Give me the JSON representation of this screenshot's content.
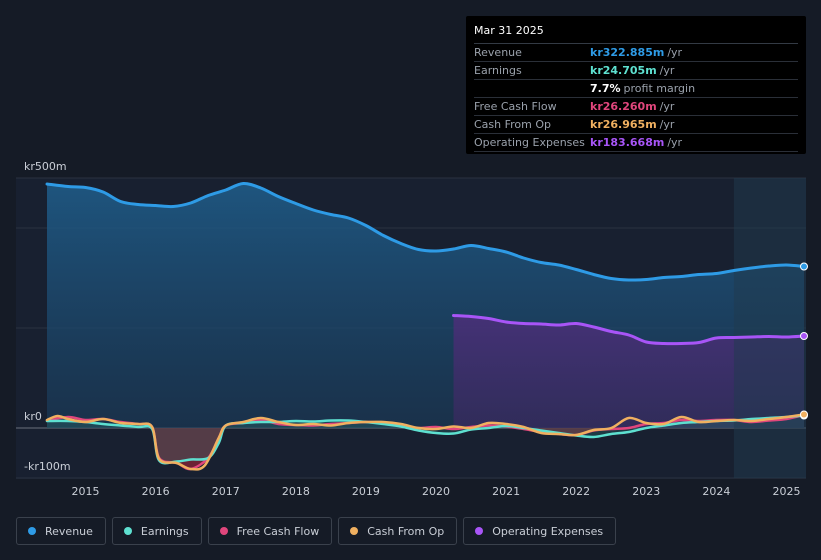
{
  "tooltip": {
    "date": "Mar 31 2025",
    "rows": [
      {
        "label": "Revenue",
        "value": "kr322.885m",
        "unit": "/yr",
        "color": "#2e9be6"
      },
      {
        "label": "Earnings",
        "value": "kr24.705m",
        "unit": "/yr",
        "color": "#5ee0d0"
      },
      {
        "label": "",
        "value": "7.7%",
        "unit": "profit margin",
        "color": "#ffffff"
      },
      {
        "label": "Free Cash Flow",
        "value": "kr26.260m",
        "unit": "/yr",
        "color": "#e0467c"
      },
      {
        "label": "Cash From Op",
        "value": "kr26.965m",
        "unit": "/yr",
        "color": "#f0b060"
      },
      {
        "label": "Operating Expenses",
        "value": "kr183.668m",
        "unit": "/yr",
        "color": "#a855f7"
      }
    ]
  },
  "legend": [
    {
      "label": "Revenue",
      "color": "#2e9be6"
    },
    {
      "label": "Earnings",
      "color": "#5ee0d0"
    },
    {
      "label": "Free Cash Flow",
      "color": "#e0467c"
    },
    {
      "label": "Cash From Op",
      "color": "#f0b060"
    },
    {
      "label": "Operating Expenses",
      "color": "#a855f7"
    }
  ],
  "chart_data": {
    "type": "area",
    "title": "",
    "ylabel_top": "kr500m",
    "ylabel_zero": "kr0",
    "ylabel_bottom": "-kr100m",
    "ylim": [
      -100,
      500
    ],
    "xlim": [
      2014.45,
      2025.25
    ],
    "x_ticks": [
      2015,
      2016,
      2017,
      2018,
      2019,
      2020,
      2021,
      2022,
      2023,
      2024,
      2025
    ],
    "x_tick_labels": [
      "2015",
      "2016",
      "2017",
      "2018",
      "2019",
      "2020",
      "2021",
      "2022",
      "2023",
      "2024",
      "2025"
    ],
    "highlight_start": 2024.25,
    "series": [
      {
        "name": "Revenue",
        "color": "#2e9be6",
        "x": [
          2014.45,
          2014.75,
          2015.0,
          2015.25,
          2015.5,
          2015.75,
          2016.0,
          2016.25,
          2016.5,
          2016.75,
          2017.0,
          2017.25,
          2017.5,
          2017.75,
          2018.0,
          2018.25,
          2018.5,
          2018.75,
          2019.0,
          2019.25,
          2019.5,
          2019.75,
          2020.0,
          2020.25,
          2020.5,
          2020.75,
          2021.0,
          2021.25,
          2021.5,
          2021.75,
          2022.0,
          2022.25,
          2022.5,
          2022.75,
          2023.0,
          2023.25,
          2023.5,
          2023.75,
          2024.0,
          2024.25,
          2024.5,
          2024.75,
          2025.0,
          2025.25
        ],
        "values": [
          488,
          483,
          481,
          472,
          453,
          447,
          445,
          443,
          450,
          465,
          476,
          489,
          480,
          463,
          449,
          436,
          427,
          420,
          405,
          385,
          369,
          357,
          354,
          358,
          365,
          359,
          352,
          340,
          331,
          326,
          317,
          307,
          299,
          296,
          297,
          301,
          303,
          307,
          309,
          315,
          320,
          324,
          326,
          323
        ]
      },
      {
        "name": "Operating Expenses",
        "color": "#a855f7",
        "x": [
          2020.25,
          2020.5,
          2020.75,
          2021.0,
          2021.25,
          2021.5,
          2021.75,
          2022.0,
          2022.25,
          2022.5,
          2022.75,
          2023.0,
          2023.25,
          2023.5,
          2023.75,
          2024.0,
          2024.25,
          2024.5,
          2024.75,
          2025.0,
          2025.25
        ],
        "values": [
          225,
          223,
          219,
          212,
          209,
          208,
          206,
          209,
          202,
          193,
          186,
          172,
          169,
          169,
          171,
          180,
          181,
          182,
          183,
          182,
          184
        ]
      },
      {
        "name": "Earnings",
        "color": "#5ee0d0",
        "x": [
          2014.45,
          2014.75,
          2015.0,
          2015.25,
          2015.5,
          2015.75,
          2015.95,
          2016.05,
          2016.3,
          2016.5,
          2016.75,
          2016.9,
          2017.0,
          2017.25,
          2017.5,
          2017.75,
          2018.0,
          2018.25,
          2018.5,
          2018.75,
          2019.0,
          2019.25,
          2019.5,
          2019.75,
          2020.0,
          2020.25,
          2020.5,
          2020.75,
          2021.0,
          2021.25,
          2021.5,
          2021.75,
          2022.0,
          2022.25,
          2022.5,
          2022.75,
          2023.0,
          2023.25,
          2023.5,
          2023.75,
          2024.0,
          2024.25,
          2024.5,
          2024.75,
          2025.0,
          2025.25
        ],
        "values": [
          14,
          14,
          12,
          8,
          5,
          2,
          -2,
          -65,
          -67,
          -63,
          -60,
          -30,
          5,
          10,
          12,
          12,
          14,
          13,
          15,
          15,
          12,
          8,
          3,
          -5,
          -10,
          -11,
          -3,
          0,
          4,
          0,
          -5,
          -10,
          -15,
          -18,
          -12,
          -8,
          0,
          5,
          10,
          12,
          14,
          15,
          18,
          20,
          22,
          25
        ]
      },
      {
        "name": "Free Cash Flow",
        "color": "#e0467c",
        "x": [
          2014.45,
          2014.75,
          2015.0,
          2015.25,
          2015.5,
          2015.75,
          2015.95,
          2016.05,
          2016.3,
          2016.5,
          2016.75,
          2016.9,
          2017.0,
          2017.25,
          2017.5,
          2017.75,
          2018.0,
          2018.25,
          2018.5,
          2018.75,
          2019.0,
          2019.25,
          2019.5,
          2019.75,
          2020.0,
          2020.25,
          2020.5,
          2020.75,
          2021.0,
          2021.25,
          2021.5,
          2021.75,
          2022.0,
          2022.25,
          2022.5,
          2022.75,
          2023.0,
          2023.25,
          2023.5,
          2023.75,
          2024.0,
          2024.25,
          2024.5,
          2024.75,
          2025.0,
          2025.25
        ],
        "values": [
          15,
          22,
          16,
          18,
          12,
          8,
          2,
          -60,
          -70,
          -82,
          -60,
          -20,
          5,
          10,
          16,
          8,
          6,
          5,
          8,
          10,
          12,
          10,
          4,
          0,
          2,
          -2,
          2,
          5,
          3,
          -2,
          -8,
          -12,
          -14,
          -5,
          -2,
          0,
          8,
          10,
          16,
          14,
          16,
          16,
          12,
          15,
          18,
          26
        ]
      },
      {
        "name": "Cash From Op",
        "color": "#f0b060",
        "x": [
          2014.45,
          2014.6,
          2014.75,
          2015.0,
          2015.25,
          2015.5,
          2015.75,
          2015.95,
          2016.05,
          2016.3,
          2016.5,
          2016.7,
          2016.9,
          2017.0,
          2017.25,
          2017.5,
          2017.75,
          2018.0,
          2018.25,
          2018.5,
          2018.75,
          2019.0,
          2019.25,
          2019.5,
          2019.75,
          2020.0,
          2020.25,
          2020.5,
          2020.75,
          2021.0,
          2021.25,
          2021.5,
          2021.75,
          2022.0,
          2022.25,
          2022.5,
          2022.75,
          2023.0,
          2023.25,
          2023.5,
          2023.75,
          2024.0,
          2024.25,
          2024.5,
          2024.75,
          2025.0,
          2025.25
        ],
        "values": [
          16,
          24,
          18,
          12,
          18,
          10,
          8,
          2,
          -62,
          -70,
          -82,
          -75,
          -20,
          5,
          12,
          20,
          12,
          6,
          8,
          5,
          10,
          12,
          12,
          8,
          0,
          -2,
          3,
          0,
          10,
          8,
          2,
          -10,
          -12,
          -14,
          -4,
          0,
          20,
          10,
          8,
          22,
          12,
          14,
          16,
          14,
          18,
          22,
          27
        ]
      }
    ]
  }
}
